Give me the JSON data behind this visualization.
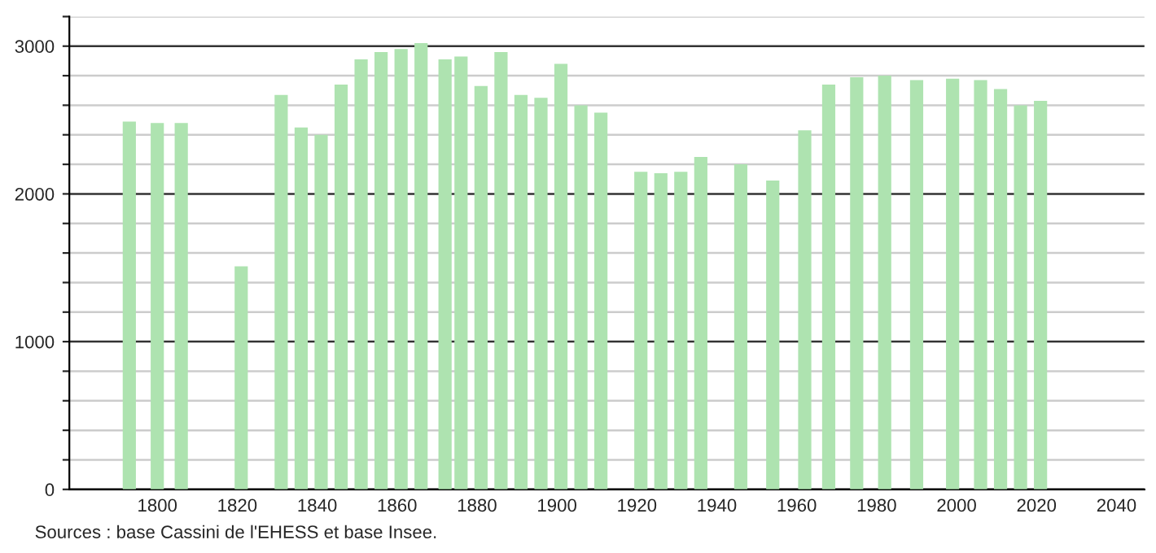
{
  "chart_data": {
    "type": "bar",
    "x": [
      1793,
      1800,
      1806,
      1821,
      1831,
      1836,
      1841,
      1846,
      1851,
      1856,
      1861,
      1866,
      1872,
      1876,
      1881,
      1886,
      1891,
      1896,
      1901,
      1906,
      1911,
      1921,
      1926,
      1931,
      1936,
      1946,
      1954,
      1962,
      1968,
      1975,
      1982,
      1990,
      1999,
      2006,
      2011,
      2016,
      2021
    ],
    "values": [
      2490,
      2480,
      2480,
      1510,
      2670,
      2450,
      2400,
      2740,
      2910,
      2960,
      2980,
      3020,
      2910,
      2930,
      2730,
      2960,
      2670,
      2650,
      2880,
      2600,
      2550,
      2150,
      2140,
      2150,
      2250,
      2200,
      2090,
      2430,
      2740,
      2790,
      2800,
      2770,
      2780,
      2770,
      2710,
      2600,
      2630
    ],
    "color": "#aee3b0",
    "xlim": [
      1778,
      2047
    ],
    "xticks": [
      1800,
      1820,
      1840,
      1860,
      1880,
      1900,
      1920,
      1940,
      1960,
      1980,
      2000,
      2020,
      2040
    ],
    "ylim": [
      0,
      3200
    ],
    "yticks": [
      0,
      {
        "value": 200,
        "label": null
      },
      {
        "value": 400,
        "label": null
      },
      {
        "value": 600,
        "label": null
      },
      {
        "value": 800,
        "label": null
      },
      1000,
      {
        "value": 1200,
        "label": null
      },
      {
        "value": 1400,
        "label": null
      },
      {
        "value": 1600,
        "label": null
      },
      {
        "value": 1800,
        "label": null
      },
      2000,
      {
        "value": 2200,
        "label": null
      },
      {
        "value": 2400,
        "label": null
      },
      {
        "value": 2600,
        "label": null
      },
      {
        "value": 2800,
        "label": null
      },
      3000,
      {
        "value": 3200,
        "label": null
      }
    ],
    "grid": "y",
    "annotations": [
      "Sources : base Cassini de l'EHESS et base Insee."
    ]
  }
}
